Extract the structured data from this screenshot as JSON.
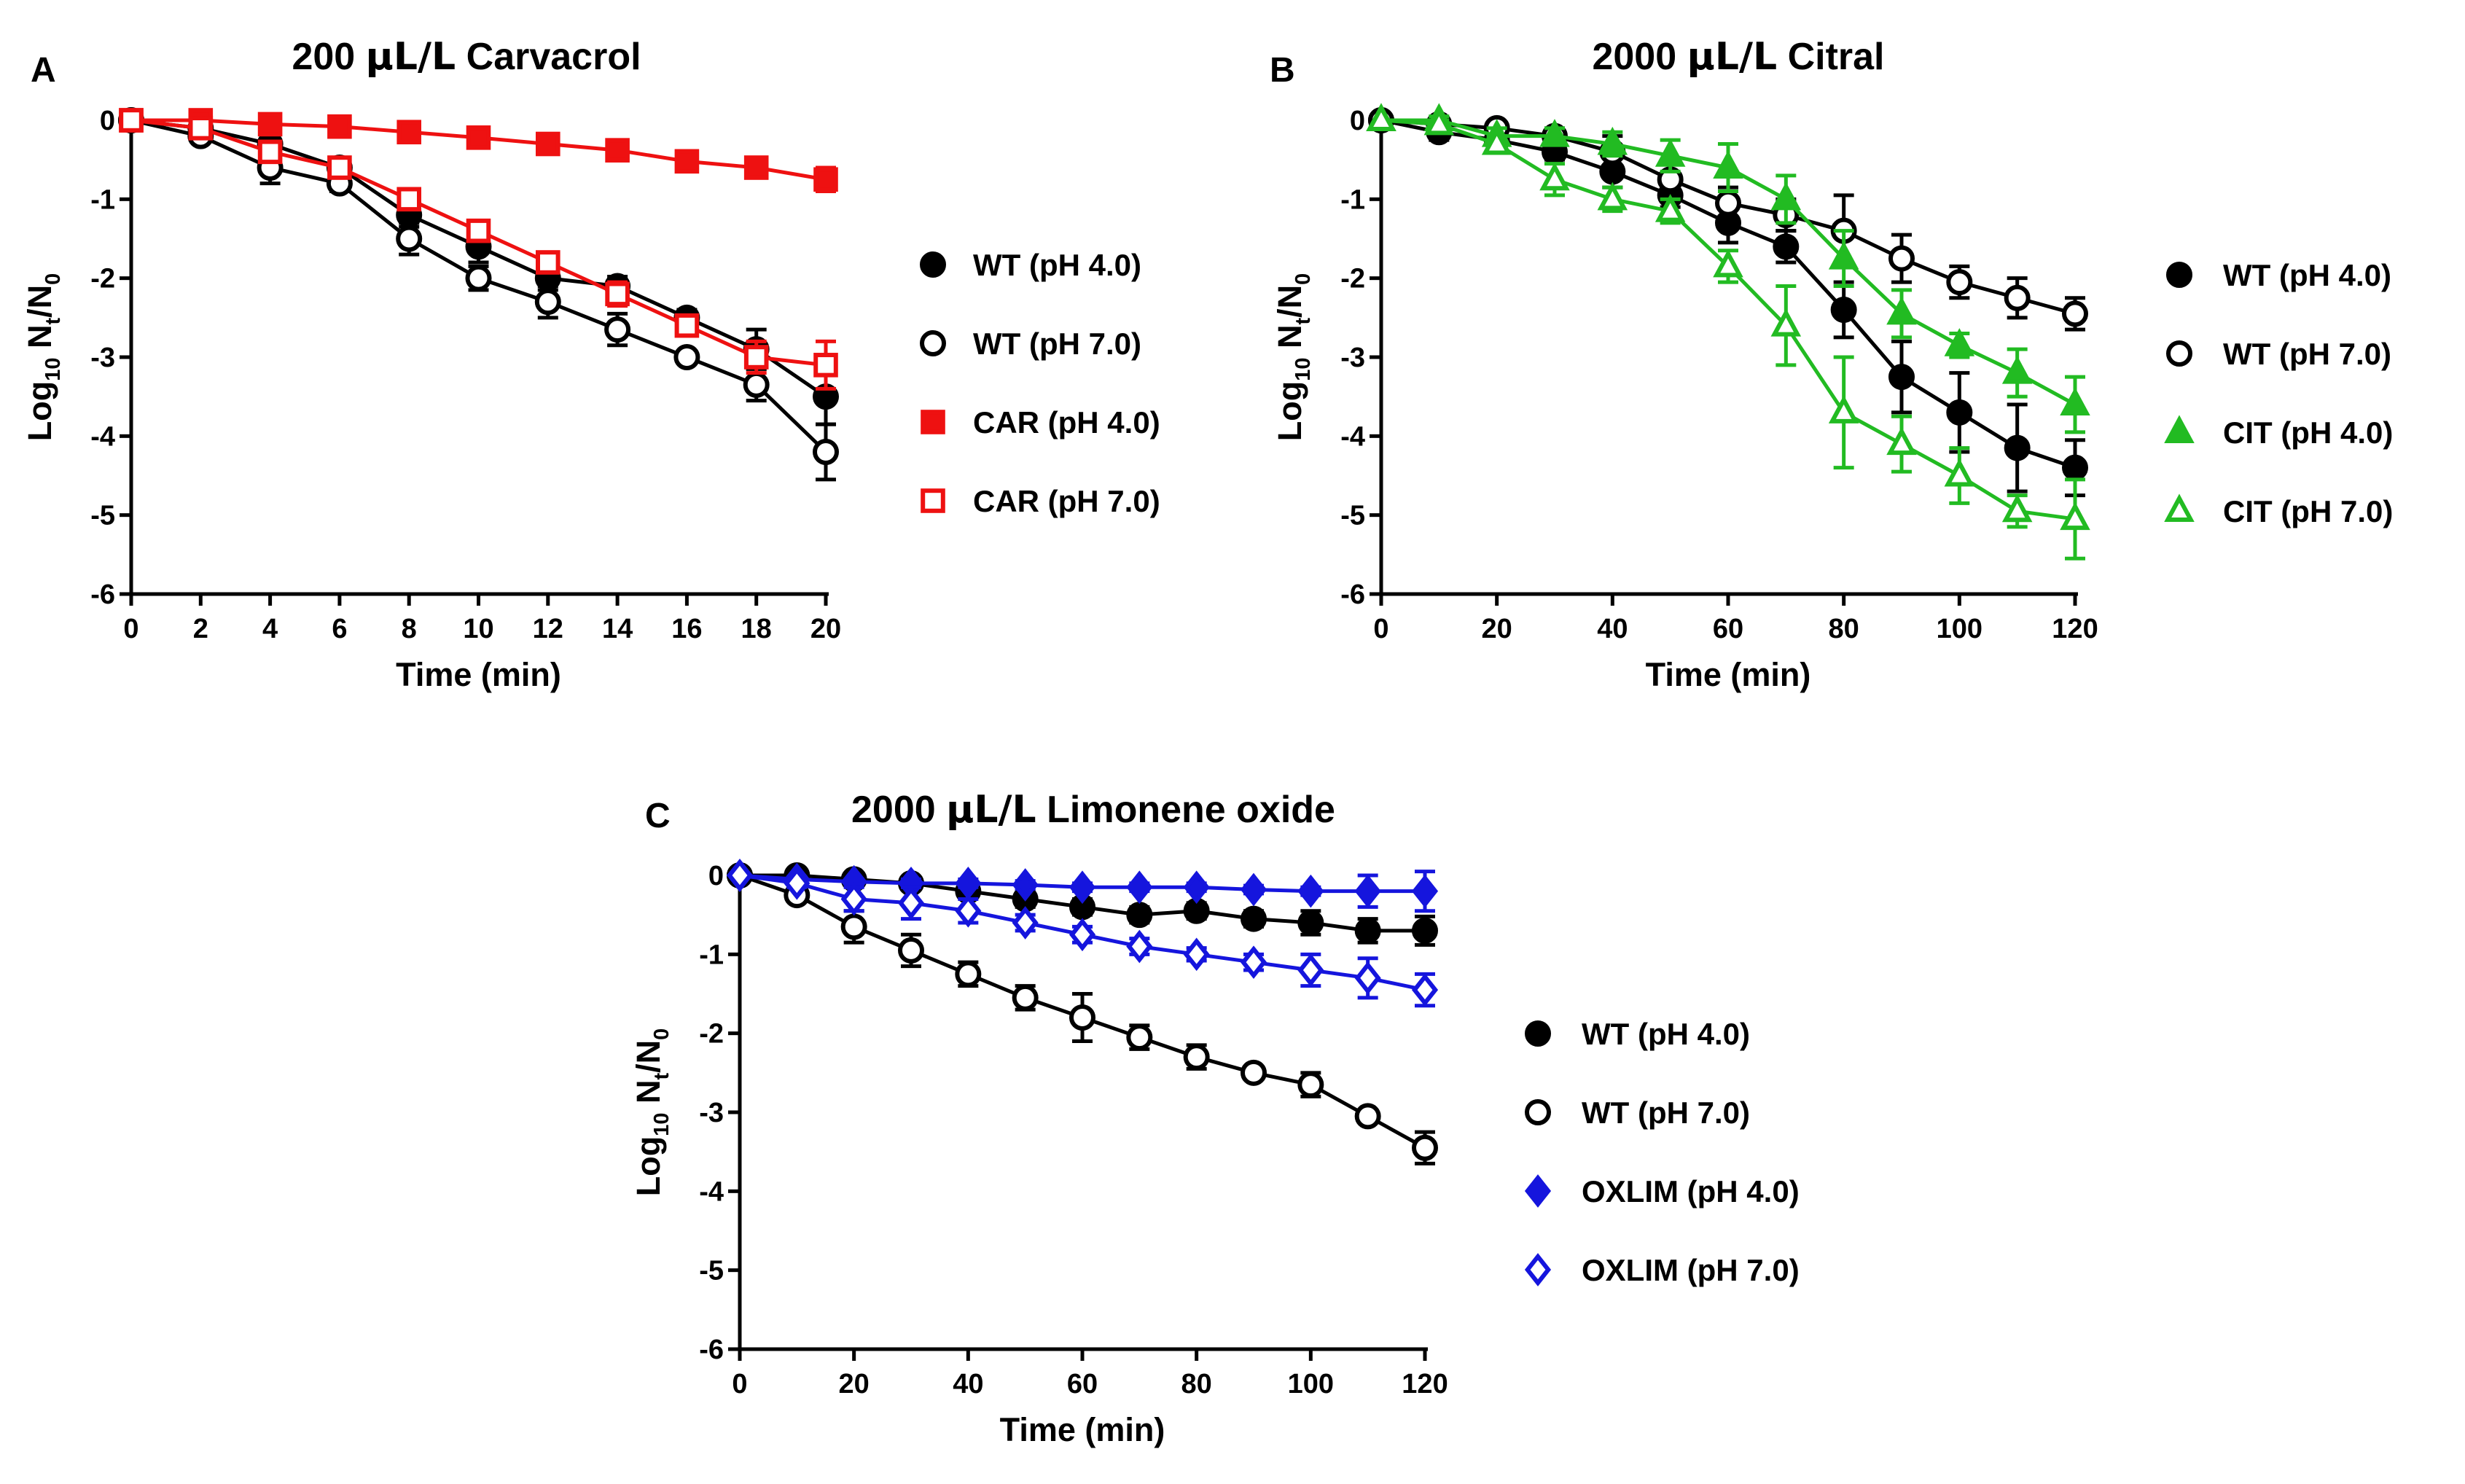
{
  "figure": {
    "colors": {
      "black": "#000000",
      "red": "#ee1111",
      "green": "#22bb22",
      "blue": "#1515dd"
    }
  },
  "chart_data": [
    {
      "type": "line",
      "panel_label": "A",
      "title_prefix": "200 ",
      "title_unit": "µL/L",
      "title_suffix": " Carvacrol",
      "xlabel": "Time (min)",
      "ylabel_parts": [
        "Log",
        "10",
        " N",
        "t",
        "/N",
        "0"
      ],
      "xlim": [
        0,
        20
      ],
      "ylim": [
        -6,
        0
      ],
      "xticks": [
        0,
        2,
        4,
        6,
        8,
        10,
        12,
        14,
        16,
        18,
        20
      ],
      "yticks": [
        0,
        -1,
        -2,
        -3,
        -4,
        -5,
        -6
      ],
      "x": [
        0,
        2,
        4,
        6,
        8,
        10,
        12,
        14,
        16,
        18,
        20
      ],
      "legend_position": "right",
      "series": [
        {
          "name": "WT (pH 4.0)",
          "color": "#000000",
          "marker": "circle",
          "filled": true,
          "values": [
            0,
            -0.1,
            -0.3,
            -0.6,
            -1.2,
            -1.6,
            -2.0,
            -2.1,
            -2.5,
            -2.9,
            -3.5
          ],
          "errors": [
            0,
            0.08,
            0.12,
            0.12,
            0.15,
            0.2,
            0.15,
            0.12,
            0.1,
            0.25,
            0.35
          ]
        },
        {
          "name": "WT (pH 7.0)",
          "color": "#000000",
          "marker": "circle",
          "filled": false,
          "values": [
            0,
            -0.2,
            -0.6,
            -0.8,
            -1.5,
            -2.0,
            -2.3,
            -2.65,
            -3.0,
            -3.35,
            -4.2
          ],
          "errors": [
            0,
            0.05,
            0.2,
            0.1,
            0.2,
            0.15,
            0.2,
            0.2,
            0.08,
            0.2,
            0.35
          ]
        },
        {
          "name": "CAR (pH 4.0)",
          "color": "#ee1111",
          "marker": "square",
          "filled": true,
          "values": [
            0,
            0,
            -0.05,
            -0.08,
            -0.15,
            -0.22,
            -0.3,
            -0.38,
            -0.52,
            -0.6,
            -0.75
          ],
          "errors": [
            0,
            0.03,
            0.03,
            0.04,
            0.05,
            0.05,
            0.05,
            0.05,
            0.06,
            0.1,
            0.15
          ]
        },
        {
          "name": "CAR (pH 7.0)",
          "color": "#ee1111",
          "marker": "square",
          "filled": false,
          "values": [
            0,
            -0.1,
            -0.4,
            -0.6,
            -1.0,
            -1.4,
            -1.8,
            -2.2,
            -2.6,
            -3.0,
            -3.1
          ],
          "errors": [
            0,
            0.05,
            0.08,
            0.1,
            0.1,
            0.1,
            0.12,
            0.15,
            0.1,
            0.2,
            0.3
          ]
        }
      ]
    },
    {
      "type": "line",
      "panel_label": "B",
      "title_prefix": "2000 ",
      "title_unit": "µL/L",
      "title_suffix": " Citral",
      "xlabel": "Time (min)",
      "ylabel_parts": [
        "Log",
        "10",
        " N",
        "t",
        "/N",
        "0"
      ],
      "xlim": [
        0,
        120
      ],
      "ylim": [
        -6,
        0
      ],
      "xticks": [
        0,
        20,
        40,
        60,
        80,
        100,
        120
      ],
      "yticks": [
        0,
        -1,
        -2,
        -3,
        -4,
        -5,
        -6
      ],
      "x": [
        0,
        10,
        20,
        30,
        40,
        50,
        60,
        70,
        80,
        90,
        100,
        110,
        120
      ],
      "legend_position": "right",
      "series": [
        {
          "name": "WT (pH 4.0)",
          "color": "#000000",
          "marker": "circle",
          "filled": true,
          "values": [
            0,
            -0.15,
            -0.25,
            -0.4,
            -0.65,
            -0.95,
            -1.3,
            -1.6,
            -2.4,
            -3.25,
            -3.7,
            -4.15,
            -4.4
          ],
          "errors": [
            0,
            0.1,
            0.1,
            0.1,
            0.2,
            0.15,
            0.25,
            0.2,
            0.35,
            0.45,
            0.5,
            0.55,
            0.35
          ]
        },
        {
          "name": "WT (pH 7.0)",
          "color": "#000000",
          "marker": "circle",
          "filled": false,
          "values": [
            0,
            -0.05,
            -0.1,
            -0.2,
            -0.4,
            -0.75,
            -1.05,
            -1.2,
            -1.4,
            -1.75,
            -2.05,
            -2.25,
            -2.45
          ],
          "errors": [
            0,
            0.05,
            0.05,
            0.1,
            0.2,
            0.2,
            0.2,
            0.2,
            0.45,
            0.3,
            0.2,
            0.25,
            0.2
          ]
        },
        {
          "name": "CIT (pH 4.0)",
          "color": "#22bb22",
          "marker": "triangle",
          "filled": true,
          "values": [
            0,
            0,
            -0.2,
            -0.2,
            -0.3,
            -0.45,
            -0.6,
            -1.0,
            -1.75,
            -2.45,
            -2.85,
            -3.2,
            -3.6
          ],
          "errors": [
            0,
            0.05,
            0.1,
            0.1,
            0.15,
            0.2,
            0.3,
            0.3,
            0.35,
            0.3,
            0.15,
            0.3,
            0.35
          ]
        },
        {
          "name": "CIT (pH 7.0)",
          "color": "#22bb22",
          "marker": "triangle",
          "filled": false,
          "values": [
            0,
            -0.05,
            -0.3,
            -0.75,
            -1.0,
            -1.15,
            -1.85,
            -2.6,
            -3.7,
            -4.1,
            -4.5,
            -4.95,
            -5.05
          ],
          "errors": [
            0,
            0.05,
            0.1,
            0.2,
            0.15,
            0.15,
            0.2,
            0.5,
            0.7,
            0.35,
            0.35,
            0.2,
            0.5
          ]
        }
      ]
    },
    {
      "type": "line",
      "panel_label": "C",
      "title_prefix": "2000 ",
      "title_unit": "µL/L",
      "title_suffix": " Limonene oxide",
      "xlabel": "Time (min)",
      "ylabel_parts": [
        "Log",
        "10",
        " N",
        "t",
        "/N",
        "0"
      ],
      "xlim": [
        0,
        120
      ],
      "ylim": [
        -6,
        0
      ],
      "xticks": [
        0,
        20,
        40,
        60,
        80,
        100,
        120
      ],
      "yticks": [
        0,
        -1,
        -2,
        -3,
        -4,
        -5,
        -6
      ],
      "x": [
        0,
        10,
        20,
        30,
        40,
        50,
        60,
        70,
        80,
        90,
        100,
        110,
        120
      ],
      "legend_position": "right",
      "series": [
        {
          "name": "WT (pH 4.0)",
          "color": "#000000",
          "marker": "circle",
          "filled": true,
          "values": [
            0,
            0,
            -0.05,
            -0.1,
            -0.2,
            -0.3,
            -0.4,
            -0.5,
            -0.45,
            -0.55,
            -0.6,
            -0.7,
            -0.7
          ],
          "errors": [
            0,
            0.03,
            0.05,
            0.05,
            0.08,
            0.1,
            0.1,
            0.1,
            0.1,
            0.1,
            0.15,
            0.15,
            0.18
          ]
        },
        {
          "name": "WT (pH 7.0)",
          "color": "#000000",
          "marker": "circle",
          "filled": false,
          "values": [
            0,
            -0.25,
            -0.65,
            -0.95,
            -1.25,
            -1.55,
            -1.8,
            -2.05,
            -2.3,
            -2.5,
            -2.65,
            -3.05,
            -3.45
          ],
          "errors": [
            0,
            0.05,
            0.2,
            0.2,
            0.15,
            0.15,
            0.3,
            0.15,
            0.15,
            0.08,
            0.15,
            0.08,
            0.2
          ]
        },
        {
          "name": "OXLIM (pH 4.0)",
          "color": "#1515dd",
          "marker": "diamond",
          "filled": true,
          "values": [
            0,
            -0.05,
            -0.08,
            -0.1,
            -0.1,
            -0.12,
            -0.15,
            -0.15,
            -0.15,
            -0.18,
            -0.2,
            -0.2,
            -0.2
          ],
          "errors": [
            0,
            0.03,
            0.03,
            0.05,
            0.05,
            0.05,
            0.05,
            0.05,
            0.05,
            0.05,
            0.05,
            0.2,
            0.25
          ]
        },
        {
          "name": "OXLIM (pH 7.0)",
          "color": "#1515dd",
          "marker": "diamond",
          "filled": false,
          "values": [
            0,
            -0.1,
            -0.3,
            -0.35,
            -0.45,
            -0.6,
            -0.75,
            -0.9,
            -1.0,
            -1.1,
            -1.2,
            -1.3,
            -1.45
          ],
          "errors": [
            0,
            0.05,
            0.15,
            0.2,
            0.15,
            0.1,
            0.1,
            0.1,
            0.08,
            0.1,
            0.2,
            0.25,
            0.2
          ]
        }
      ]
    }
  ]
}
